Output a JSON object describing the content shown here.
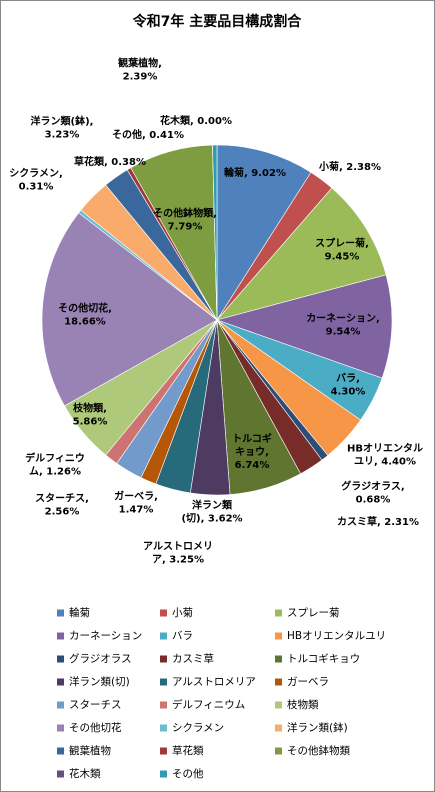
{
  "chart_data": {
    "type": "pie",
    "title": "令和7年 主要品目構成割合",
    "categories": [
      "輪菊",
      "小菊",
      "スプレー菊",
      "カーネーション",
      "バラ",
      "HBオリエンタルユリ",
      "グラジオラス",
      "カスミ草",
      "トルコギキョウ",
      "洋ラン類(切)",
      "アルストロメリア",
      "ガーベラ",
      "スターチス",
      "デルフィニウム",
      "枝物類",
      "その他切花",
      "シクラメン",
      "洋ラン類(鉢)",
      "観葉植物",
      "草花類",
      "その他鉢物類",
      "花木類",
      "その他"
    ],
    "values": [
      9.02,
      2.38,
      9.45,
      9.54,
      4.3,
      4.4,
      0.68,
      2.31,
      6.74,
      3.62,
      3.25,
      1.47,
      2.56,
      1.26,
      5.86,
      18.66,
      0.31,
      3.23,
      2.39,
      0.38,
      7.79,
      0.0,
      0.41
    ],
    "value_labels": [
      "輪菊, 9.02%",
      "小菊, 2.38%",
      "スプレー菊,\n9.45%",
      "カーネーション,\n9.54%",
      "バラ,\n4.30%",
      "HBオリエンタル\nユリ, 4.40%",
      "グラジオラス,\n0.68%",
      "カスミ草, 2.31%",
      "トルコギ\nキョウ,\n6.74%",
      "洋ラン類\n(切), 3.62%",
      "アルストロメリ\nア, 3.25%",
      "ガーベラ,\n1.47%",
      "スターチス,\n2.56%",
      "デルフィニウ\nム, 1.26%",
      "枝物類,\n5.86%",
      "その他切花,\n18.66%",
      "シクラメン,\n0.31%",
      "洋ラン類(鉢),\n3.23%",
      "観葉植物,\n2.39%",
      "草花類, 0.38%",
      "その他鉢物類,\n7.79%",
      "花木類, 0.00%",
      "その他, 0.41%"
    ],
    "colors": [
      "#4F81BD",
      "#C0504D",
      "#9BBB59",
      "#8064A2",
      "#4BACC6",
      "#F79646",
      "#2C4D75",
      "#772C2A",
      "#5F7530",
      "#4D3B62",
      "#276A7C",
      "#B65708",
      "#729ACA",
      "#CD7371",
      "#AFC97A",
      "#9983B5",
      "#6FBDD1",
      "#F9AB6B",
      "#3A679C",
      "#9E3B38",
      "#7E9D40",
      "#664F83",
      "#339AB4"
    ]
  }
}
